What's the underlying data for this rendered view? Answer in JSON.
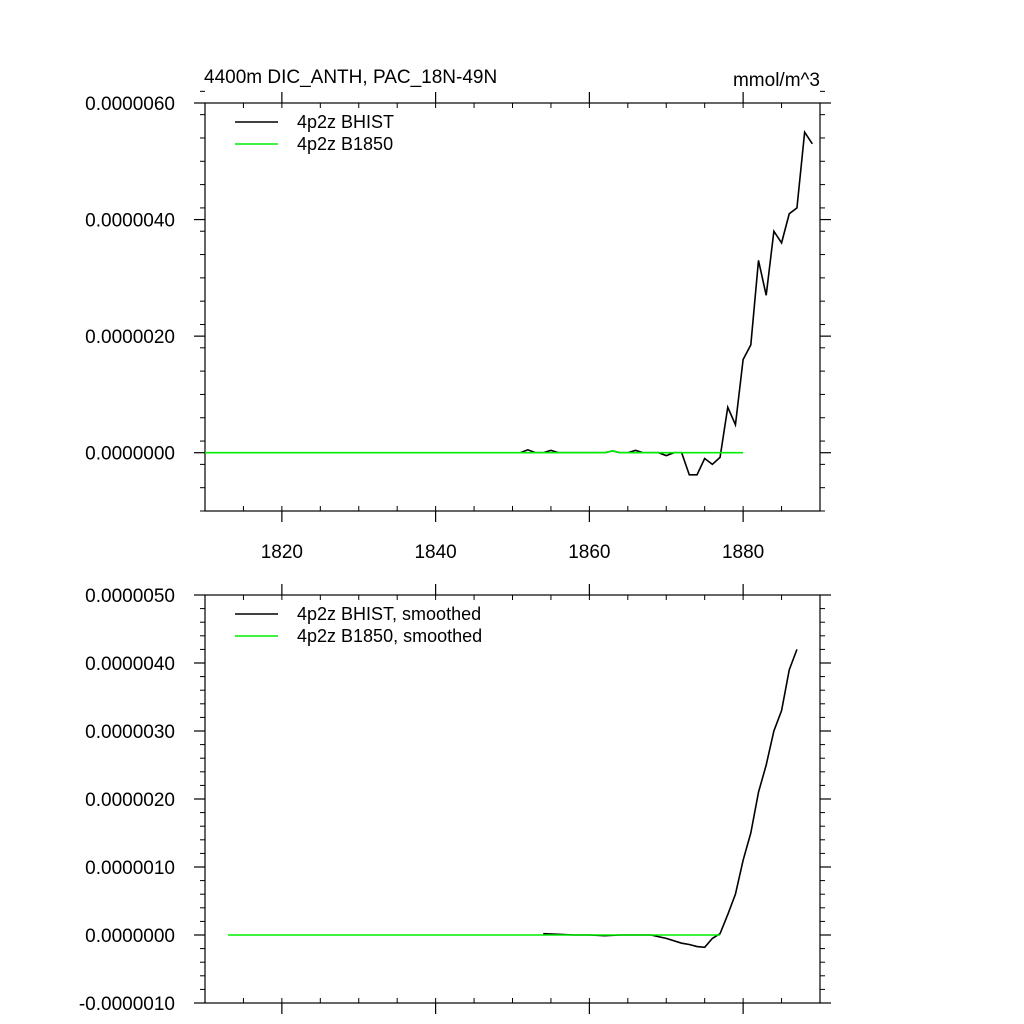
{
  "chart_data": [
    {
      "type": "line",
      "title": "4400m DIC_ANTH, PAC_18N-49N",
      "units_label": "mmol/m^3",
      "xlim": [
        1810,
        1890
      ],
      "ylim": [
        -1e-06,
        6e-06
      ],
      "x_ticks": [
        1820,
        1840,
        1860,
        1880
      ],
      "y_ticks": [
        0,
        2e-06,
        4e-06,
        6e-06
      ],
      "y_tick_labels": [
        "0.0000000",
        "0.0000020",
        "0.0000040",
        "0.0000060"
      ],
      "x_tick_labels": [
        "1820",
        "1840",
        "1860",
        "1880"
      ],
      "grid": false,
      "legend_position": "top-left",
      "series": [
        {
          "name": "4p2z BHIST",
          "color": "#000000",
          "x": [
            1851,
            1852,
            1853,
            1854,
            1855,
            1856,
            1857,
            1858,
            1859,
            1860,
            1861,
            1862,
            1863,
            1864,
            1865,
            1866,
            1867,
            1868,
            1869,
            1870,
            1871,
            1872,
            1873,
            1874,
            1875,
            1876,
            1877,
            1878,
            1879,
            1880,
            1881,
            1882,
            1883,
            1884,
            1885,
            1886,
            1887,
            1888,
            1889
          ],
          "y": [
            0,
            5e-08,
            0,
            0,
            4e-08,
            0,
            0,
            0,
            0,
            0,
            0,
            0,
            3e-08,
            0,
            0,
            4e-08,
            0,
            0,
            0,
            -5e-08,
            0,
            0,
            -3.8e-07,
            -3.8e-07,
            -1e-07,
            -2e-07,
            -8e-08,
            7.8e-07,
            4.8e-07,
            1.6e-06,
            1.85e-06,
            3.3e-06,
            2.7e-06,
            3.8e-06,
            3.6e-06,
            4.1e-06,
            4.2e-06,
            5.5e-06,
            5.3e-06
          ]
        },
        {
          "name": "4p2z B1850",
          "color": "#00ee00",
          "x": [
            1810,
            1820,
            1830,
            1840,
            1850,
            1860,
            1862,
            1863,
            1864,
            1870,
            1880
          ],
          "y": [
            0,
            0,
            0,
            0,
            0,
            0,
            0,
            3e-08,
            0,
            0,
            0
          ]
        }
      ]
    },
    {
      "type": "line",
      "title": "",
      "xlim": [
        1810,
        1890
      ],
      "ylim": [
        -1e-06,
        5e-06
      ],
      "x_ticks": [
        1820,
        1840,
        1860,
        1880
      ],
      "y_ticks": [
        -1e-06,
        0,
        1e-06,
        2e-06,
        3e-06,
        4e-06,
        5e-06
      ],
      "y_tick_labels": [
        "-0.0000010",
        "0.0000000",
        "0.0000010",
        "0.0000020",
        "0.0000030",
        "0.0000040",
        "0.0000050"
      ],
      "grid": false,
      "legend_position": "top-left",
      "series": [
        {
          "name": "4p2z BHIST, smoothed",
          "color": "#000000",
          "x": [
            1854,
            1856,
            1858,
            1860,
            1862,
            1864,
            1866,
            1868,
            1870,
            1872,
            1873,
            1874,
            1875,
            1876,
            1877,
            1878,
            1879,
            1880,
            1881,
            1882,
            1883,
            1884,
            1885,
            1886,
            1887
          ],
          "y": [
            2e-08,
            1e-08,
            0,
            0,
            -1e-08,
            0,
            0,
            0,
            -5e-08,
            -1.2e-07,
            -1.4e-07,
            -1.7e-07,
            -1.8e-07,
            -5e-08,
            2e-08,
            3e-07,
            6e-07,
            1.1e-06,
            1.5e-06,
            2.1e-06,
            2.5e-06,
            3e-06,
            3.3e-06,
            3.9e-06,
            4.2e-06
          ]
        },
        {
          "name": "4p2z B1850, smoothed",
          "color": "#00ee00",
          "x": [
            1813,
            1820,
            1830,
            1840,
            1850,
            1860,
            1865,
            1870,
            1877
          ],
          "y": [
            0,
            0,
            0,
            0,
            0,
            0,
            0,
            0,
            0
          ]
        }
      ]
    }
  ]
}
